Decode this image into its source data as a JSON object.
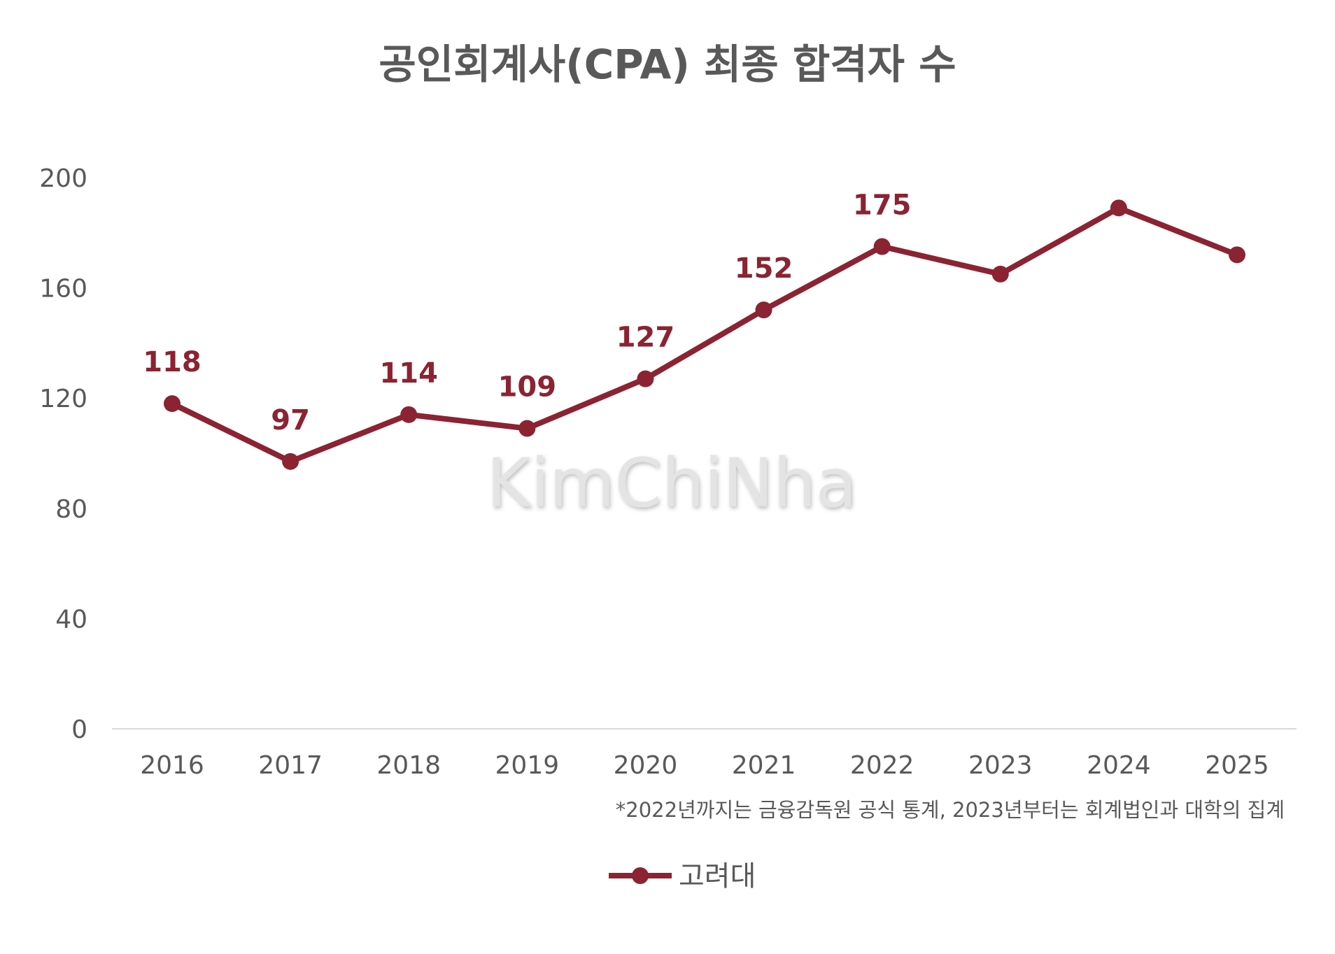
{
  "chart_data": {
    "type": "line",
    "title": "공인회계사(CPA) 최종 합격자 수",
    "categories": [
      "2016",
      "2017",
      "2018",
      "2019",
      "2020",
      "2021",
      "2022",
      "2023",
      "2024",
      "2025"
    ],
    "series": [
      {
        "name": "고려대",
        "values": [
          118,
          97,
          114,
          109,
          127,
          152,
          175,
          165,
          189,
          172
        ],
        "color": "#8b2332",
        "data_labels": [
          "118",
          "97",
          "114",
          "109",
          "127",
          "152",
          "175",
          "",
          "",
          ""
        ]
      }
    ],
    "yticks": [
      "0",
      "40",
      "80",
      "120",
      "160",
      "200"
    ],
    "ylim": [
      0,
      200
    ],
    "grid": false,
    "legend": "bottom",
    "footnote": "*2022년까지는 금융감독원 공식 통계, 2023년부터는 회계법인과 대학의 집계",
    "watermark": "KimChiNha"
  }
}
